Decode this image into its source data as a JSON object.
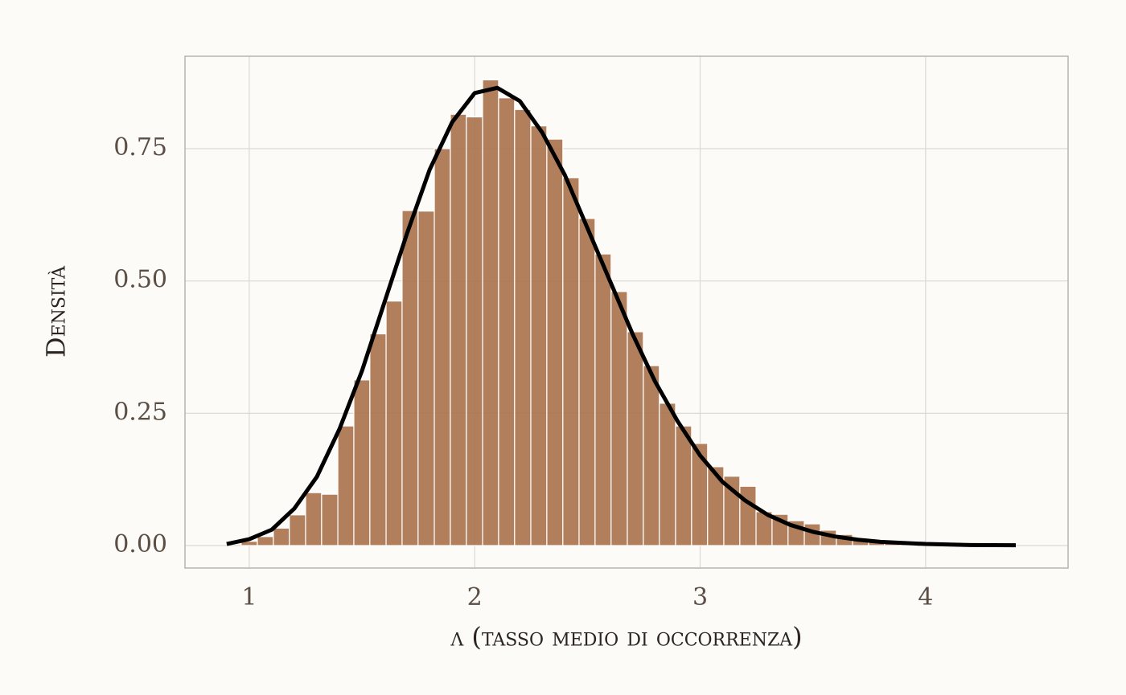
{
  "chart_data": {
    "type": "histogram",
    "xlabel": "λ (tasso medio di occorrenza)",
    "ylabel": "Densità",
    "bins": [
      0.964,
      1.036,
      1.107,
      1.178,
      1.25,
      1.321,
      1.393,
      1.464,
      1.535,
      1.607,
      1.678,
      1.749,
      1.821,
      1.892,
      1.963,
      2.035,
      2.106,
      2.177,
      2.249,
      2.32,
      2.391,
      2.463,
      2.534,
      2.605,
      2.677,
      2.748,
      2.819,
      2.891,
      2.962,
      3.033,
      3.105,
      3.176,
      3.248,
      3.319,
      3.39,
      3.462,
      3.533,
      3.604,
      3.676,
      3.747,
      3.818,
      3.89,
      3.961
    ],
    "values": [
      0.008,
      0.017,
      0.033,
      0.058,
      0.1,
      0.097,
      0.226,
      0.313,
      0.4,
      0.462,
      0.633,
      0.632,
      0.75,
      0.815,
      0.81,
      0.88,
      0.846,
      0.824,
      0.793,
      0.768,
      0.695,
      0.618,
      0.551,
      0.48,
      0.404,
      0.34,
      0.269,
      0.226,
      0.193,
      0.149,
      0.131,
      0.112,
      0.064,
      0.059,
      0.047,
      0.041,
      0.029,
      0.021,
      0.014,
      0.009,
      0.005,
      0.003
    ],
    "color": "#a9714a",
    "line": {
      "color": "#000000",
      "x": [
        0.9,
        1.0,
        1.1,
        1.2,
        1.3,
        1.4,
        1.5,
        1.6,
        1.7,
        1.8,
        1.9,
        2.0,
        2.1,
        2.2,
        2.3,
        2.4,
        2.5,
        2.6,
        2.7,
        2.8,
        2.9,
        3.0,
        3.1,
        3.2,
        3.3,
        3.4,
        3.5,
        3.6,
        3.7,
        3.8,
        3.9,
        4.0,
        4.2,
        4.4
      ],
      "values": [
        0.003,
        0.012,
        0.03,
        0.07,
        0.13,
        0.22,
        0.33,
        0.46,
        0.59,
        0.71,
        0.8,
        0.855,
        0.865,
        0.84,
        0.78,
        0.7,
        0.6,
        0.5,
        0.4,
        0.31,
        0.235,
        0.17,
        0.12,
        0.085,
        0.058,
        0.039,
        0.026,
        0.017,
        0.011,
        0.007,
        0.005,
        0.003,
        0.001,
        0.0005
      ]
    },
    "xlim": [
      0.715,
      4.632
    ],
    "ylim": [
      -0.0425,
      0.9246
    ],
    "xticks": [
      1,
      2,
      3,
      4
    ],
    "yticks": [
      {
        "value": 0,
        "label": "0.00"
      },
      0.25,
      {
        "value": 0.5,
        "label": "0.50"
      },
      0.75
    ],
    "grid": true
  }
}
